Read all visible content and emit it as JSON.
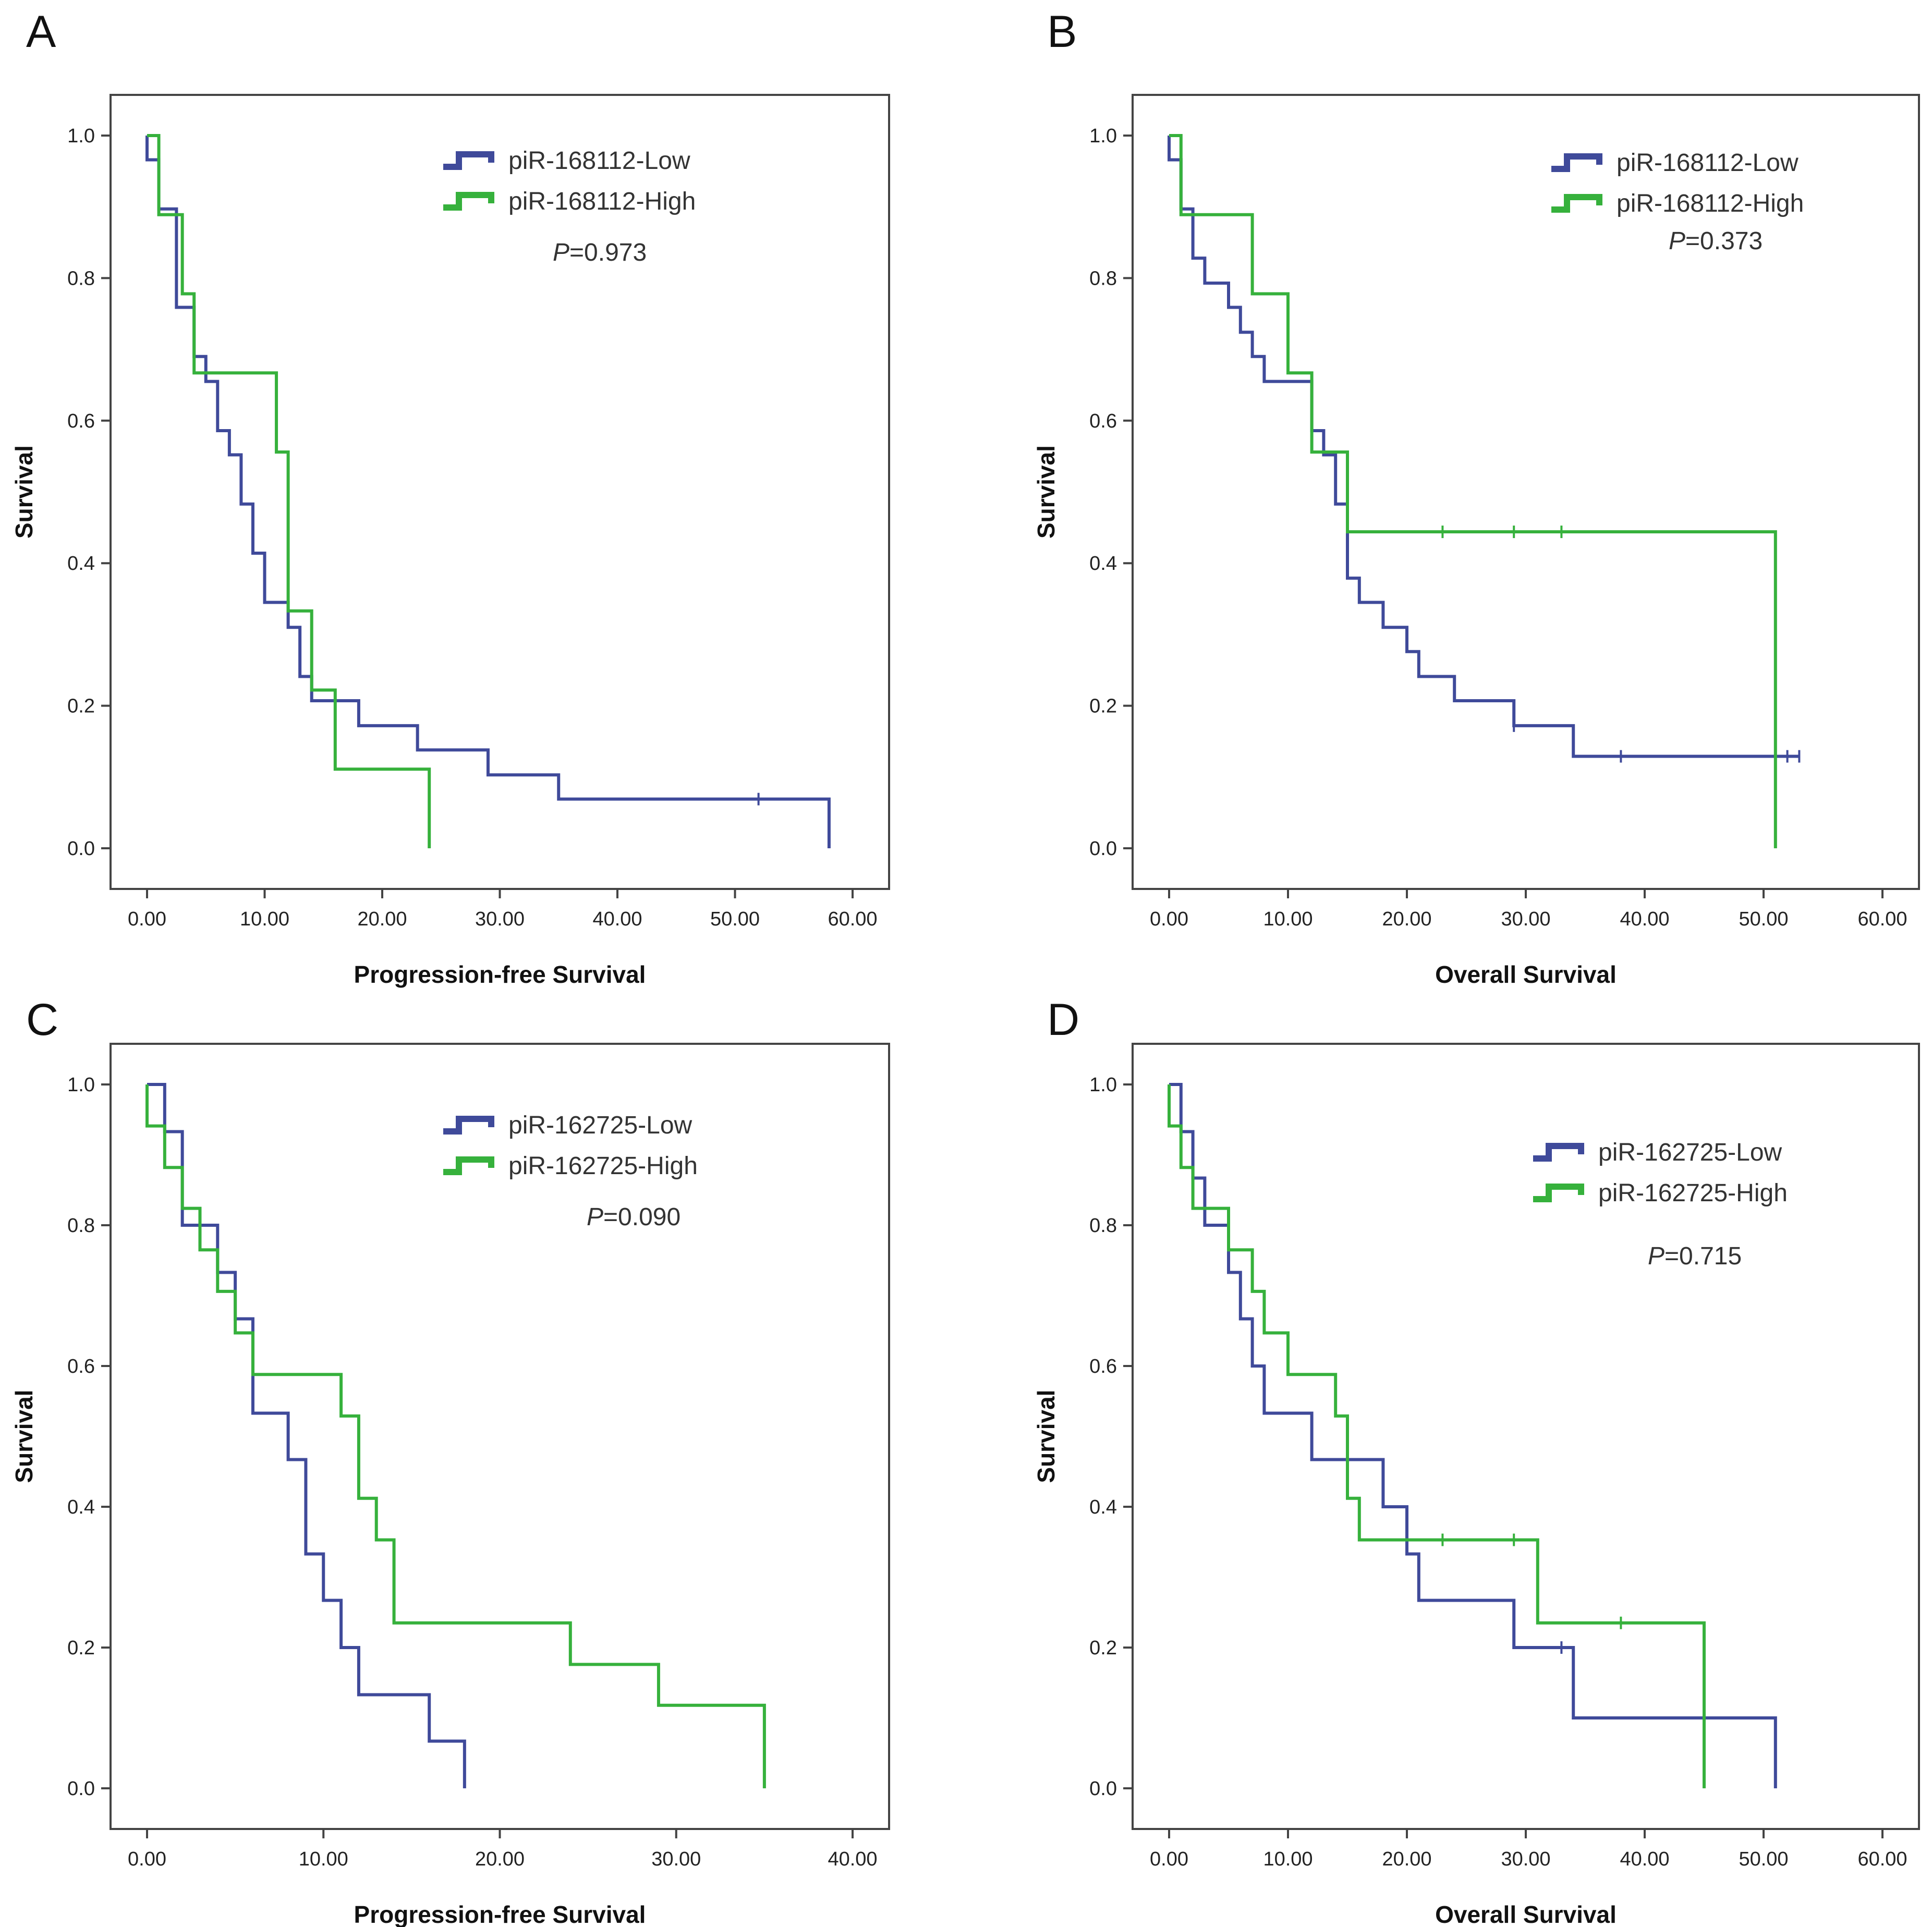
{
  "colors": {
    "low": "#3f4a9a",
    "high": "#36b13c"
  },
  "chart_data": [
    {
      "panel": "A",
      "type": "line",
      "subtype": "kaplan-meier",
      "xlabel": "Progression-free Survival",
      "ylabel": "Survival",
      "xlim": [
        0,
        60
      ],
      "ylim": [
        0,
        1
      ],
      "x_ticks": [
        "0.00",
        "10.00",
        "20.00",
        "30.00",
        "40.00",
        "50.00",
        "60.00"
      ],
      "y_ticks": [
        "0.0",
        "0.2",
        "0.4",
        "0.6",
        "0.8",
        "1.0"
      ],
      "legend_position": "top-center",
      "p_prefix": "P",
      "p_value": "=0.973",
      "series": [
        {
          "name": "piR-168112-Low",
          "color": "low",
          "x": [
            0,
            1,
            2,
            2.5,
            4,
            5,
            6,
            7,
            8,
            9,
            10,
            12,
            13,
            14,
            18,
            23,
            29,
            35,
            58
          ],
          "y": [
            0.966,
            0.897,
            0.897,
            0.759,
            0.69,
            0.655,
            0.586,
            0.552,
            0.483,
            0.414,
            0.345,
            0.31,
            0.241,
            0.207,
            0.172,
            0.138,
            0.103,
            0.069,
            0
          ],
          "censored": [
            [
              52,
              0.069
            ]
          ]
        },
        {
          "name": "piR-168112-High",
          "color": "high",
          "x": [
            0,
            1,
            3,
            4,
            11,
            12,
            14,
            16,
            24
          ],
          "y": [
            1,
            0.889,
            0.778,
            0.667,
            0.556,
            0.333,
            0.222,
            0.111,
            0
          ],
          "censored": []
        }
      ]
    },
    {
      "panel": "B",
      "type": "line",
      "subtype": "kaplan-meier",
      "xlabel": "Overall Survival",
      "ylabel": "Survival",
      "xlim": [
        0,
        60
      ],
      "ylim": [
        0,
        1
      ],
      "x_ticks": [
        "0.00",
        "10.00",
        "20.00",
        "30.00",
        "40.00",
        "50.00",
        "60.00"
      ],
      "y_ticks": [
        "0.0",
        "0.2",
        "0.4",
        "0.6",
        "0.8",
        "1.0"
      ],
      "legend_position": "top-right",
      "p_prefix": "P",
      "p_value": "=0.373",
      "series": [
        {
          "name": "piR-168112-Low",
          "color": "low",
          "x": [
            0,
            1,
            2,
            3,
            5,
            6,
            7,
            8,
            12,
            13,
            14,
            15,
            16,
            18,
            20,
            21,
            24,
            29,
            34,
            53
          ],
          "y": [
            0.966,
            0.897,
            0.828,
            0.793,
            0.759,
            0.724,
            0.69,
            0.655,
            0.586,
            0.552,
            0.483,
            0.379,
            0.345,
            0.31,
            0.276,
            0.241,
            0.207,
            0.172,
            0.129,
            0.129
          ],
          "censored": [
            [
              29,
              0.172
            ],
            [
              38,
              0.129
            ],
            [
              52,
              0.129
            ],
            [
              53,
              0.129
            ]
          ]
        },
        {
          "name": "piR-168112-High",
          "color": "high",
          "x": [
            0,
            1,
            7,
            10,
            12,
            15,
            51
          ],
          "y": [
            1,
            0.889,
            0.778,
            0.667,
            0.556,
            0.444,
            0
          ],
          "censored": [
            [
              23,
              0.444
            ],
            [
              29,
              0.444
            ],
            [
              33,
              0.444
            ]
          ]
        }
      ]
    },
    {
      "panel": "C",
      "type": "line",
      "subtype": "kaplan-meier",
      "xlabel": "Progression-free Survival",
      "ylabel": "Survival",
      "xlim": [
        0,
        40
      ],
      "ylim": [
        0,
        1
      ],
      "x_ticks": [
        "0.00",
        "10.00",
        "20.00",
        "30.00",
        "40.00"
      ],
      "y_ticks": [
        "0.0",
        "0.2",
        "0.4",
        "0.6",
        "0.8",
        "1.0"
      ],
      "legend_position": "top-center",
      "p_prefix": "P",
      "p_value": "=0.090",
      "series": [
        {
          "name": "piR-162725-Low",
          "color": "low",
          "x": [
            0,
            1,
            2,
            4,
            5,
            6,
            8,
            9,
            10,
            11,
            12,
            16,
            18
          ],
          "y": [
            1,
            0.933,
            0.8,
            0.733,
            0.667,
            0.533,
            0.467,
            0.333,
            0.267,
            0.2,
            0.133,
            0.067,
            0
          ],
          "censored": []
        },
        {
          "name": "piR-162725-High",
          "color": "high",
          "x": [
            0,
            1,
            2,
            3,
            4,
            5,
            6,
            11,
            12,
            13,
            14,
            24,
            29,
            35
          ],
          "y": [
            0.941,
            0.882,
            0.824,
            0.765,
            0.706,
            0.647,
            0.588,
            0.529,
            0.412,
            0.353,
            0.235,
            0.176,
            0.118,
            0
          ],
          "censored": []
        }
      ]
    },
    {
      "panel": "D",
      "type": "line",
      "subtype": "kaplan-meier",
      "xlabel": "Overall Survival",
      "ylabel": "Survival",
      "xlim": [
        0,
        60
      ],
      "ylim": [
        0,
        1
      ],
      "x_ticks": [
        "0.00",
        "10.00",
        "20.00",
        "30.00",
        "40.00",
        "50.00",
        "60.00"
      ],
      "y_ticks": [
        "0.0",
        "0.2",
        "0.4",
        "0.6",
        "0.8",
        "1.0"
      ],
      "legend_position": "top-right",
      "p_prefix": "P",
      "p_value": "=0.715",
      "series": [
        {
          "name": "piR-162725-Low",
          "color": "low",
          "x": [
            0,
            1,
            2,
            3,
            5,
            6,
            7,
            8,
            12,
            18,
            20,
            21,
            29,
            34,
            51
          ],
          "y": [
            1,
            0.933,
            0.867,
            0.8,
            0.733,
            0.667,
            0.6,
            0.533,
            0.467,
            0.4,
            0.333,
            0.267,
            0.2,
            0.1,
            0
          ],
          "censored": [
            [
              33,
              0.2
            ]
          ]
        },
        {
          "name": "piR-162725-High",
          "color": "high",
          "x": [
            0,
            1,
            2,
            5,
            7,
            8,
            10,
            14,
            15,
            16,
            31,
            45
          ],
          "y": [
            0.941,
            0.882,
            0.824,
            0.765,
            0.706,
            0.647,
            0.588,
            0.529,
            0.412,
            0.353,
            0.235,
            0
          ],
          "censored": [
            [
              23,
              0.353
            ],
            [
              29,
              0.353
            ],
            [
              38,
              0.235
            ]
          ]
        }
      ]
    }
  ]
}
